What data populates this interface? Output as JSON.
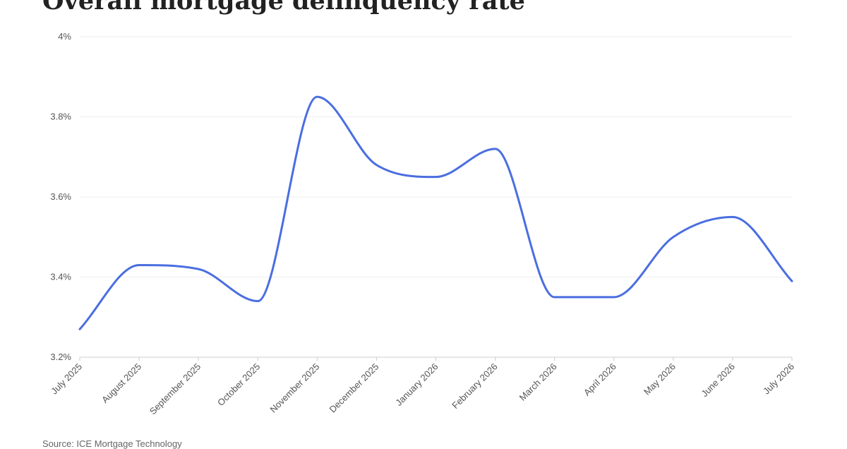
{
  "chart_data": {
    "type": "line",
    "title": "Overall mortgage delinquency rate",
    "xlabel": "",
    "ylabel": "",
    "categories": [
      "July 2025",
      "August 2025",
      "September 2025",
      "October 2025",
      "November 2025",
      "December 2025",
      "January 2026",
      "February 2026",
      "March 2026",
      "April 2026",
      "May 2026",
      "June 2026",
      "July 2026"
    ],
    "series": [
      {
        "values": [
          3.27,
          3.43,
          3.42,
          3.34,
          3.85,
          3.68,
          3.65,
          3.72,
          3.35,
          3.35,
          3.5,
          3.55,
          3.39
        ]
      }
    ],
    "ylim": [
      3.2,
      4.0
    ],
    "yticks": [
      "3.2%",
      "3.4%",
      "3.6%",
      "3.8%",
      "4%"
    ],
    "ytick_values": [
      3.2,
      3.4,
      3.6,
      3.8,
      4.0
    ],
    "grid": true,
    "line_color": "#4a6ee0",
    "source": "Source: ICE Mortgage Technology"
  }
}
